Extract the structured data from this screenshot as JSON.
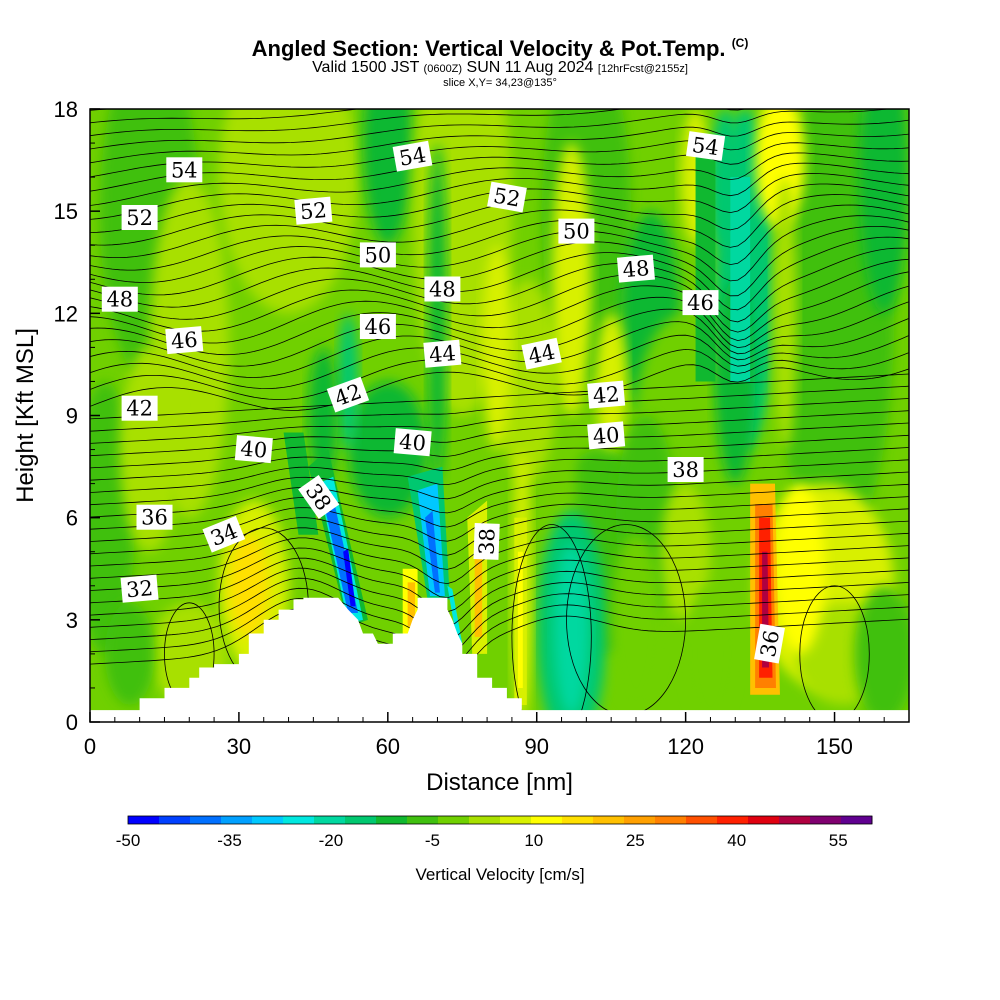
{
  "title": {
    "main": "Angled Section: Vertical Velocity & Pot.Temp.",
    "copyright": "(C)",
    "valid_prefix": "Valid 1500 JST",
    "valid_utc": "(0600Z)",
    "valid_date": "SUN 11 Aug 2024",
    "forecast": "[12hrFcst@2155z]",
    "slice": "slice X,Y= 34,23@135°"
  },
  "chart_data": {
    "type": "heatmap",
    "xlabel": "Distance [nm]",
    "ylabel": "Height [Kft MSL]",
    "xlim": [
      0,
      165
    ],
    "ylim": [
      0,
      18
    ],
    "x_ticks": [
      0,
      30,
      60,
      90,
      120,
      150
    ],
    "y_ticks": [
      0,
      3,
      6,
      9,
      12,
      15,
      18
    ],
    "colorbar": {
      "title": "Vertical Velocity [cm/s]",
      "tick_labels": [
        "-50",
        "-35",
        "-20",
        "-5",
        "10",
        "25",
        "40",
        "55"
      ],
      "min": -50,
      "max": 60,
      "step": 5,
      "colors": [
        "#0000ff",
        "#0040ff",
        "#0070ff",
        "#00a0ff",
        "#00c8ff",
        "#00e8e0",
        "#00d8a0",
        "#00c870",
        "#10b830",
        "#40c010",
        "#70d000",
        "#a8e000",
        "#d8f000",
        "#ffff00",
        "#ffe000",
        "#ffc000",
        "#ffa000",
        "#ff8000",
        "#ff5000",
        "#ff2000",
        "#e00010",
        "#b00040",
        "#800070",
        "#600090"
      ]
    },
    "terrain_height_kft": [
      [
        0,
        0.35
      ],
      [
        10,
        0.35
      ],
      [
        10,
        0.7
      ],
      [
        15,
        0.7
      ],
      [
        15,
        1.0
      ],
      [
        20,
        1.0
      ],
      [
        20,
        1.3
      ],
      [
        22,
        1.3
      ],
      [
        22,
        1.6
      ],
      [
        25,
        1.6
      ],
      [
        25,
        1.7
      ],
      [
        30,
        1.7
      ],
      [
        30,
        2.0
      ],
      [
        32,
        2.0
      ],
      [
        32,
        2.6
      ],
      [
        35,
        2.6
      ],
      [
        35,
        3.0
      ],
      [
        38,
        3.0
      ],
      [
        38,
        3.3
      ],
      [
        41,
        3.3
      ],
      [
        41,
        3.6
      ],
      [
        43,
        3.6
      ],
      [
        43,
        3.65
      ],
      [
        50,
        3.65
      ],
      [
        52,
        3.3
      ],
      [
        54,
        3.0
      ],
      [
        55,
        2.6
      ],
      [
        57,
        2.6
      ],
      [
        58,
        2.3
      ],
      [
        61,
        2.3
      ],
      [
        61,
        2.6
      ],
      [
        64,
        2.6
      ],
      [
        65,
        3.0
      ],
      [
        66,
        3.3
      ],
      [
        66,
        3.65
      ],
      [
        72,
        3.65
      ],
      [
        72,
        3.3
      ],
      [
        73,
        3.0
      ],
      [
        74,
        2.6
      ],
      [
        75,
        2.3
      ],
      [
        75,
        2.0
      ],
      [
        78,
        2.0
      ],
      [
        78,
        1.3
      ],
      [
        81,
        1.3
      ],
      [
        81,
        1.0
      ],
      [
        84,
        1.0
      ],
      [
        84,
        0.7
      ],
      [
        87,
        0.7
      ],
      [
        87,
        0.35
      ],
      [
        165,
        0.35
      ]
    ],
    "isentrope_labels": [
      {
        "text": "54",
        "x": 19,
        "y": 16.2,
        "angle": 0
      },
      {
        "text": "54",
        "x": 65,
        "y": 16.6,
        "angle": -10
      },
      {
        "text": "54",
        "x": 124,
        "y": 16.9,
        "angle": 8
      },
      {
        "text": "52",
        "x": 10,
        "y": 14.8,
        "angle": 0
      },
      {
        "text": "52",
        "x": 45,
        "y": 15.0,
        "angle": -5
      },
      {
        "text": "52",
        "x": 84,
        "y": 15.4,
        "angle": 10
      },
      {
        "text": "50",
        "x": 58,
        "y": 13.7,
        "angle": 0
      },
      {
        "text": "50",
        "x": 98,
        "y": 14.4,
        "angle": 0
      },
      {
        "text": "48",
        "x": 6,
        "y": 12.4,
        "angle": 0
      },
      {
        "text": "48",
        "x": 71,
        "y": 12.7,
        "angle": 0
      },
      {
        "text": "48",
        "x": 110,
        "y": 13.3,
        "angle": -5
      },
      {
        "text": "46",
        "x": 19,
        "y": 11.2,
        "angle": -5
      },
      {
        "text": "46",
        "x": 58,
        "y": 11.6,
        "angle": 0
      },
      {
        "text": "46",
        "x": 123,
        "y": 12.3,
        "angle": 0
      },
      {
        "text": "44",
        "x": 71,
        "y": 10.8,
        "angle": -5
      },
      {
        "text": "44",
        "x": 91,
        "y": 10.8,
        "angle": -12
      },
      {
        "text": "42",
        "x": 10,
        "y": 9.2,
        "angle": 0
      },
      {
        "text": "42",
        "x": 52,
        "y": 9.6,
        "angle": -20
      },
      {
        "text": "42",
        "x": 104,
        "y": 9.6,
        "angle": -5
      },
      {
        "text": "40",
        "x": 33,
        "y": 8.0,
        "angle": 5
      },
      {
        "text": "40",
        "x": 65,
        "y": 8.2,
        "angle": 5
      },
      {
        "text": "40",
        "x": 104,
        "y": 8.4,
        "angle": -5
      },
      {
        "text": "38",
        "x": 46,
        "y": 6.6,
        "angle": 55
      },
      {
        "text": "38",
        "x": 80,
        "y": 5.3,
        "angle": -88
      },
      {
        "text": "38",
        "x": 120,
        "y": 7.4,
        "angle": 0
      },
      {
        "text": "36",
        "x": 13,
        "y": 6.0,
        "angle": 0
      },
      {
        "text": "36",
        "x": 137,
        "y": 2.3,
        "angle": -80
      },
      {
        "text": "34",
        "x": 27,
        "y": 5.5,
        "angle": -22
      },
      {
        "text": "32",
        "x": 10,
        "y": 3.9,
        "angle": -5
      }
    ],
    "vertical_velocity_features_cm_s": [
      {
        "name": "downdraft",
        "x": 50,
        "y": 4.5,
        "value": -40
      },
      {
        "name": "downdraft",
        "x": 69,
        "y": 5.3,
        "value": -30
      },
      {
        "name": "updraft",
        "x": 65,
        "y": 3.7,
        "value": 25
      },
      {
        "name": "updraft",
        "x": 78,
        "y": 4.8,
        "value": 25
      },
      {
        "name": "updraft",
        "x": 32,
        "y": 4.0,
        "value": 20
      },
      {
        "name": "updraft",
        "x": 136,
        "y": 3.8,
        "value": 58
      },
      {
        "name": "updraft",
        "x": 145,
        "y": 4.5,
        "value": 15
      },
      {
        "name": "sinking",
        "x": 97,
        "y": 2.6,
        "value": -15
      },
      {
        "name": "sinking",
        "x": 131,
        "y": 13.5,
        "value": -15
      },
      {
        "name": "rising",
        "x": 139,
        "y": 16.5,
        "value": 12
      }
    ]
  }
}
